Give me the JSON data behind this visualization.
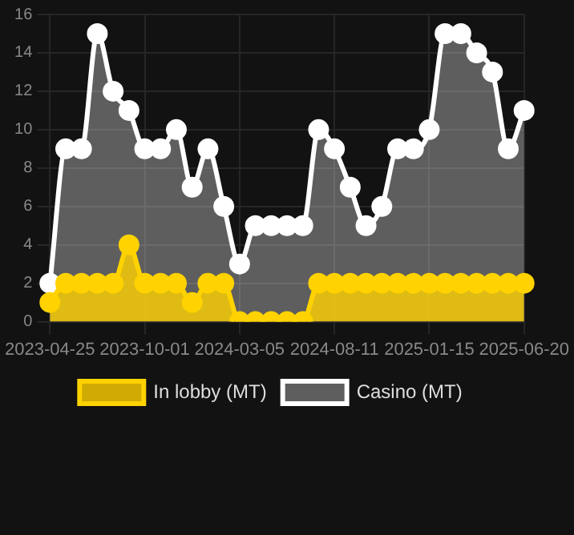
{
  "chart_data": {
    "type": "area",
    "categories": [
      "2023-04-25",
      null,
      null,
      null,
      null,
      null,
      "2023-10-01",
      null,
      null,
      null,
      null,
      null,
      "2024-03-05",
      null,
      null,
      null,
      null,
      null,
      "2024-08-11",
      null,
      null,
      null,
      null,
      null,
      "2025-01-15",
      null,
      null,
      null,
      null,
      null,
      "2025-06-20"
    ],
    "series": [
      {
        "name": "In lobby (MT)",
        "color": "#ffd200",
        "values": [
          1,
          2,
          2,
          2,
          2,
          4,
          2,
          2,
          2,
          1,
          2,
          2,
          0,
          0,
          0,
          0,
          0,
          2,
          2,
          2,
          2,
          2,
          2,
          2,
          2,
          2,
          2,
          2,
          2,
          2,
          2
        ]
      },
      {
        "name": "Casino (MT)",
        "color": "#ffffff",
        "values": [
          2,
          9,
          9,
          15,
          12,
          11,
          9,
          9,
          10,
          7,
          9,
          6,
          3,
          5,
          5,
          5,
          5,
          10,
          9,
          7,
          5,
          6,
          9,
          9,
          10,
          15,
          15,
          14,
          13,
          9,
          11
        ]
      }
    ],
    "ylim": [
      0,
      16
    ],
    "yticks": [
      0,
      2,
      4,
      6,
      8,
      10,
      12,
      14,
      16
    ],
    "grid": true,
    "legend": "bottom",
    "marker": "circle"
  }
}
